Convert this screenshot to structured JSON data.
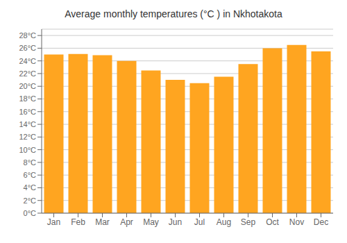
{
  "chart_data": {
    "type": "bar",
    "title": "Average monthly temperatures (°C ) in Nkhotakota",
    "categories": [
      "Jan",
      "Feb",
      "Mar",
      "Apr",
      "May",
      "Jun",
      "Jul",
      "Aug",
      "Sep",
      "Oct",
      "Nov",
      "Dec"
    ],
    "values": [
      25.0,
      25.1,
      24.9,
      24.0,
      22.5,
      21.0,
      20.5,
      21.5,
      23.5,
      26.0,
      26.5,
      25.5
    ],
    "color": "#FFA520",
    "ylim": [
      0,
      29
    ],
    "yticks": [
      {
        "value": 0,
        "label": "0°C"
      },
      {
        "value": 2,
        "label": "2°C"
      },
      {
        "value": 4,
        "label": "4°C"
      },
      {
        "value": 6,
        "label": "6°C"
      },
      {
        "value": 8,
        "label": "8°C"
      },
      {
        "value": 10,
        "label": "10°C"
      },
      {
        "value": 12,
        "label": "12°C"
      },
      {
        "value": 14,
        "label": "14°C"
      },
      {
        "value": 16,
        "label": "16°C"
      },
      {
        "value": 18,
        "label": "18°C"
      },
      {
        "value": 20,
        "label": "20°C"
      },
      {
        "value": 22,
        "label": "22°C"
      },
      {
        "value": 24,
        "label": "24°C"
      },
      {
        "value": 26,
        "label": "26°C"
      },
      {
        "value": 28,
        "label": "28°C"
      }
    ],
    "grid": true
  }
}
